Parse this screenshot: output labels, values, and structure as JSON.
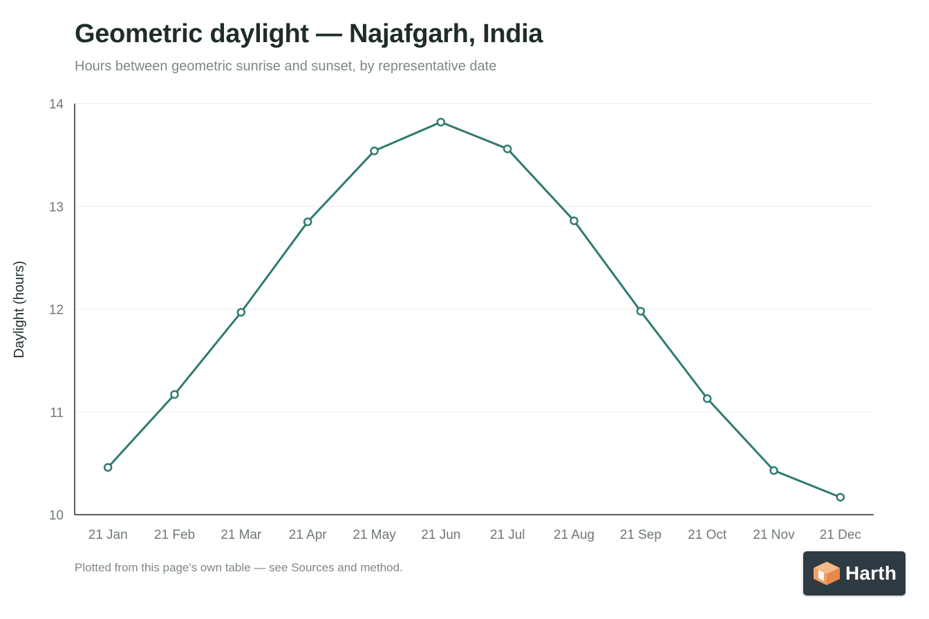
{
  "chart_data": {
    "type": "line",
    "title": "Geometric daylight — Najafgarh, India",
    "subtitle": "Hours between geometric sunrise and sunset, by representative date",
    "xlabel": "",
    "ylabel": "Daylight (hours)",
    "categories": [
      "21 Jan",
      "21 Feb",
      "21 Mar",
      "21 Apr",
      "21 May",
      "21 Jun",
      "21 Jul",
      "21 Aug",
      "21 Sep",
      "21 Oct",
      "21 Nov",
      "21 Dec"
    ],
    "series": [
      {
        "values": [
          10.46,
          11.17,
          11.97,
          12.85,
          13.54,
          13.82,
          13.56,
          12.86,
          11.98,
          11.13,
          10.43,
          10.17
        ],
        "color": "#2f7a70"
      }
    ],
    "ylim": [
      10,
      14
    ],
    "yticks": [
      10,
      11,
      12,
      13,
      14
    ],
    "grid": true,
    "legend": "none"
  },
  "footnote": "Plotted from this page's own table — see Sources and method.",
  "logo": {
    "text": "Harth",
    "icon": "cube-logo-icon"
  }
}
